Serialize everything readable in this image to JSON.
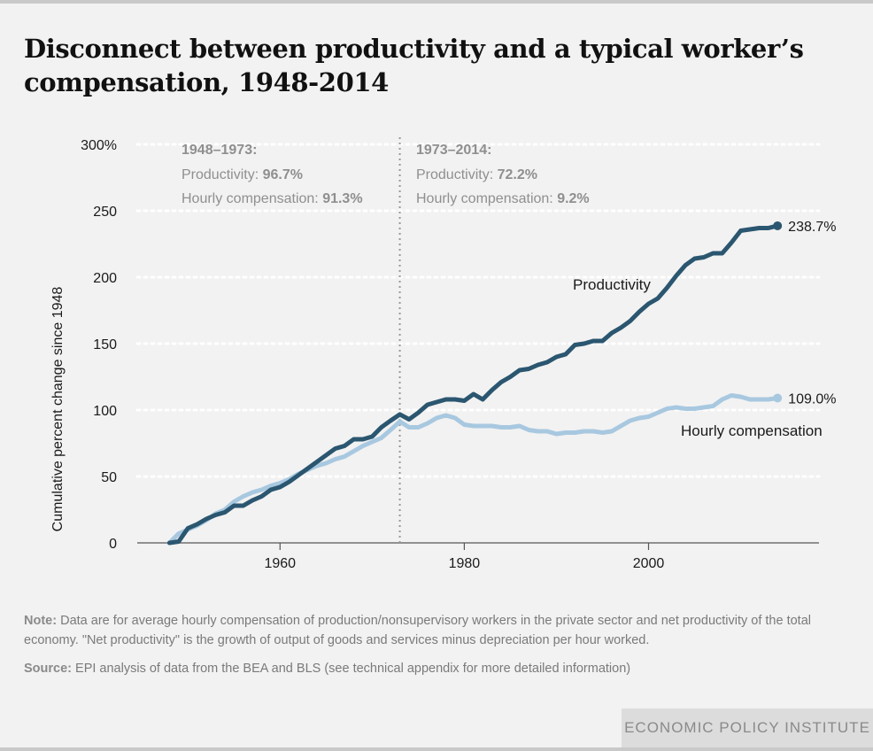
{
  "title": "Disconnect between productivity and a typical worker’s compensation, 1948-2014",
  "note_label": "Note:",
  "note_text": "Data are for average hourly compensation of production/nonsupervisory workers in the private sector and net productivity of the total economy. \"Net productivity\" is the growth of output of goods and services minus depreciation per hour worked.",
  "source_label": "Source:",
  "source_text": "EPI analysis of data from the BEA and BLS (see technical appendix for more detailed information)",
  "footer": "ECONOMIC POLICY INSTITUTE",
  "colors": {
    "productivity": "#2b5670",
    "compensation": "#a8c8e0",
    "annotation": "#8f8f8f",
    "grid": "#ffffff"
  },
  "chart_data": {
    "type": "line",
    "title": "Disconnect between productivity and a typical worker’s compensation, 1948-2014",
    "xlabel": "",
    "ylabel": "Cumulative percent change since 1948",
    "xlim": [
      1944.5,
      2018.5
    ],
    "ylim": [
      0,
      300
    ],
    "y_ticks": [
      0,
      50,
      100,
      150,
      200,
      250,
      300
    ],
    "y_tick_labels": [
      "0",
      "50",
      "100",
      "150",
      "200",
      "250",
      "300%"
    ],
    "x_ticks": [
      1960,
      1980,
      2000
    ],
    "x_tick_labels": [
      "1960",
      "1980",
      "2000"
    ],
    "grid": "horizontal dotted",
    "divider_year": 1973,
    "periods": [
      {
        "heading": "1948–1973:",
        "productivity_label": "Productivity: ",
        "productivity_value": "96.7%",
        "compensation_label": "Hourly compensation: ",
        "compensation_value": "91.3%"
      },
      {
        "heading": "1973–2014:",
        "productivity_label": "Productivity: ",
        "productivity_value": "72.2%",
        "compensation_label": "Hourly compensation: ",
        "compensation_value": "9.2%"
      }
    ],
    "x": [
      1948,
      1949,
      1950,
      1951,
      1952,
      1953,
      1954,
      1955,
      1956,
      1957,
      1958,
      1959,
      1960,
      1961,
      1962,
      1963,
      1964,
      1965,
      1966,
      1967,
      1968,
      1969,
      1970,
      1971,
      1972,
      1973,
      1974,
      1975,
      1976,
      1977,
      1978,
      1979,
      1980,
      1981,
      1982,
      1983,
      1984,
      1985,
      1986,
      1987,
      1988,
      1989,
      1990,
      1991,
      1992,
      1993,
      1994,
      1995,
      1996,
      1997,
      1998,
      1999,
      2000,
      2001,
      2002,
      2003,
      2004,
      2005,
      2006,
      2007,
      2008,
      2009,
      2010,
      2011,
      2012,
      2013,
      2014
    ],
    "series": [
      {
        "name": "Productivity",
        "end_label": "238.7%",
        "values": [
          0,
          1,
          11,
          14,
          18,
          21,
          23,
          28,
          28,
          32,
          35,
          40,
          42,
          46,
          51,
          56,
          61,
          66,
          71,
          73,
          78,
          78,
          80,
          87,
          92,
          96.7,
          93,
          98,
          104,
          106,
          108,
          108,
          107,
          112,
          108,
          115,
          121,
          125,
          130,
          131,
          134,
          136,
          140,
          142,
          149,
          150,
          152,
          152,
          158,
          162,
          167,
          174,
          180,
          184,
          192,
          201,
          209,
          214,
          215,
          218,
          218,
          226,
          235,
          236,
          237,
          237,
          238.7
        ]
      },
      {
        "name": "Hourly compensation",
        "end_label": "109.0%",
        "values": [
          0,
          7,
          10,
          13,
          17,
          22,
          25,
          31,
          35,
          38,
          40,
          43,
          45,
          48,
          52,
          55,
          58,
          60,
          63,
          65,
          69,
          73,
          76,
          79,
          85,
          91.3,
          87,
          87,
          90,
          94,
          96,
          94,
          89,
          88,
          88,
          88,
          87,
          87,
          88,
          85,
          84,
          84,
          82,
          83,
          83,
          84,
          84,
          83,
          84,
          88,
          92,
          94,
          95,
          98,
          101,
          102,
          101,
          101,
          102,
          103,
          108,
          111,
          110,
          108,
          108,
          108,
          109.0
        ]
      }
    ]
  }
}
